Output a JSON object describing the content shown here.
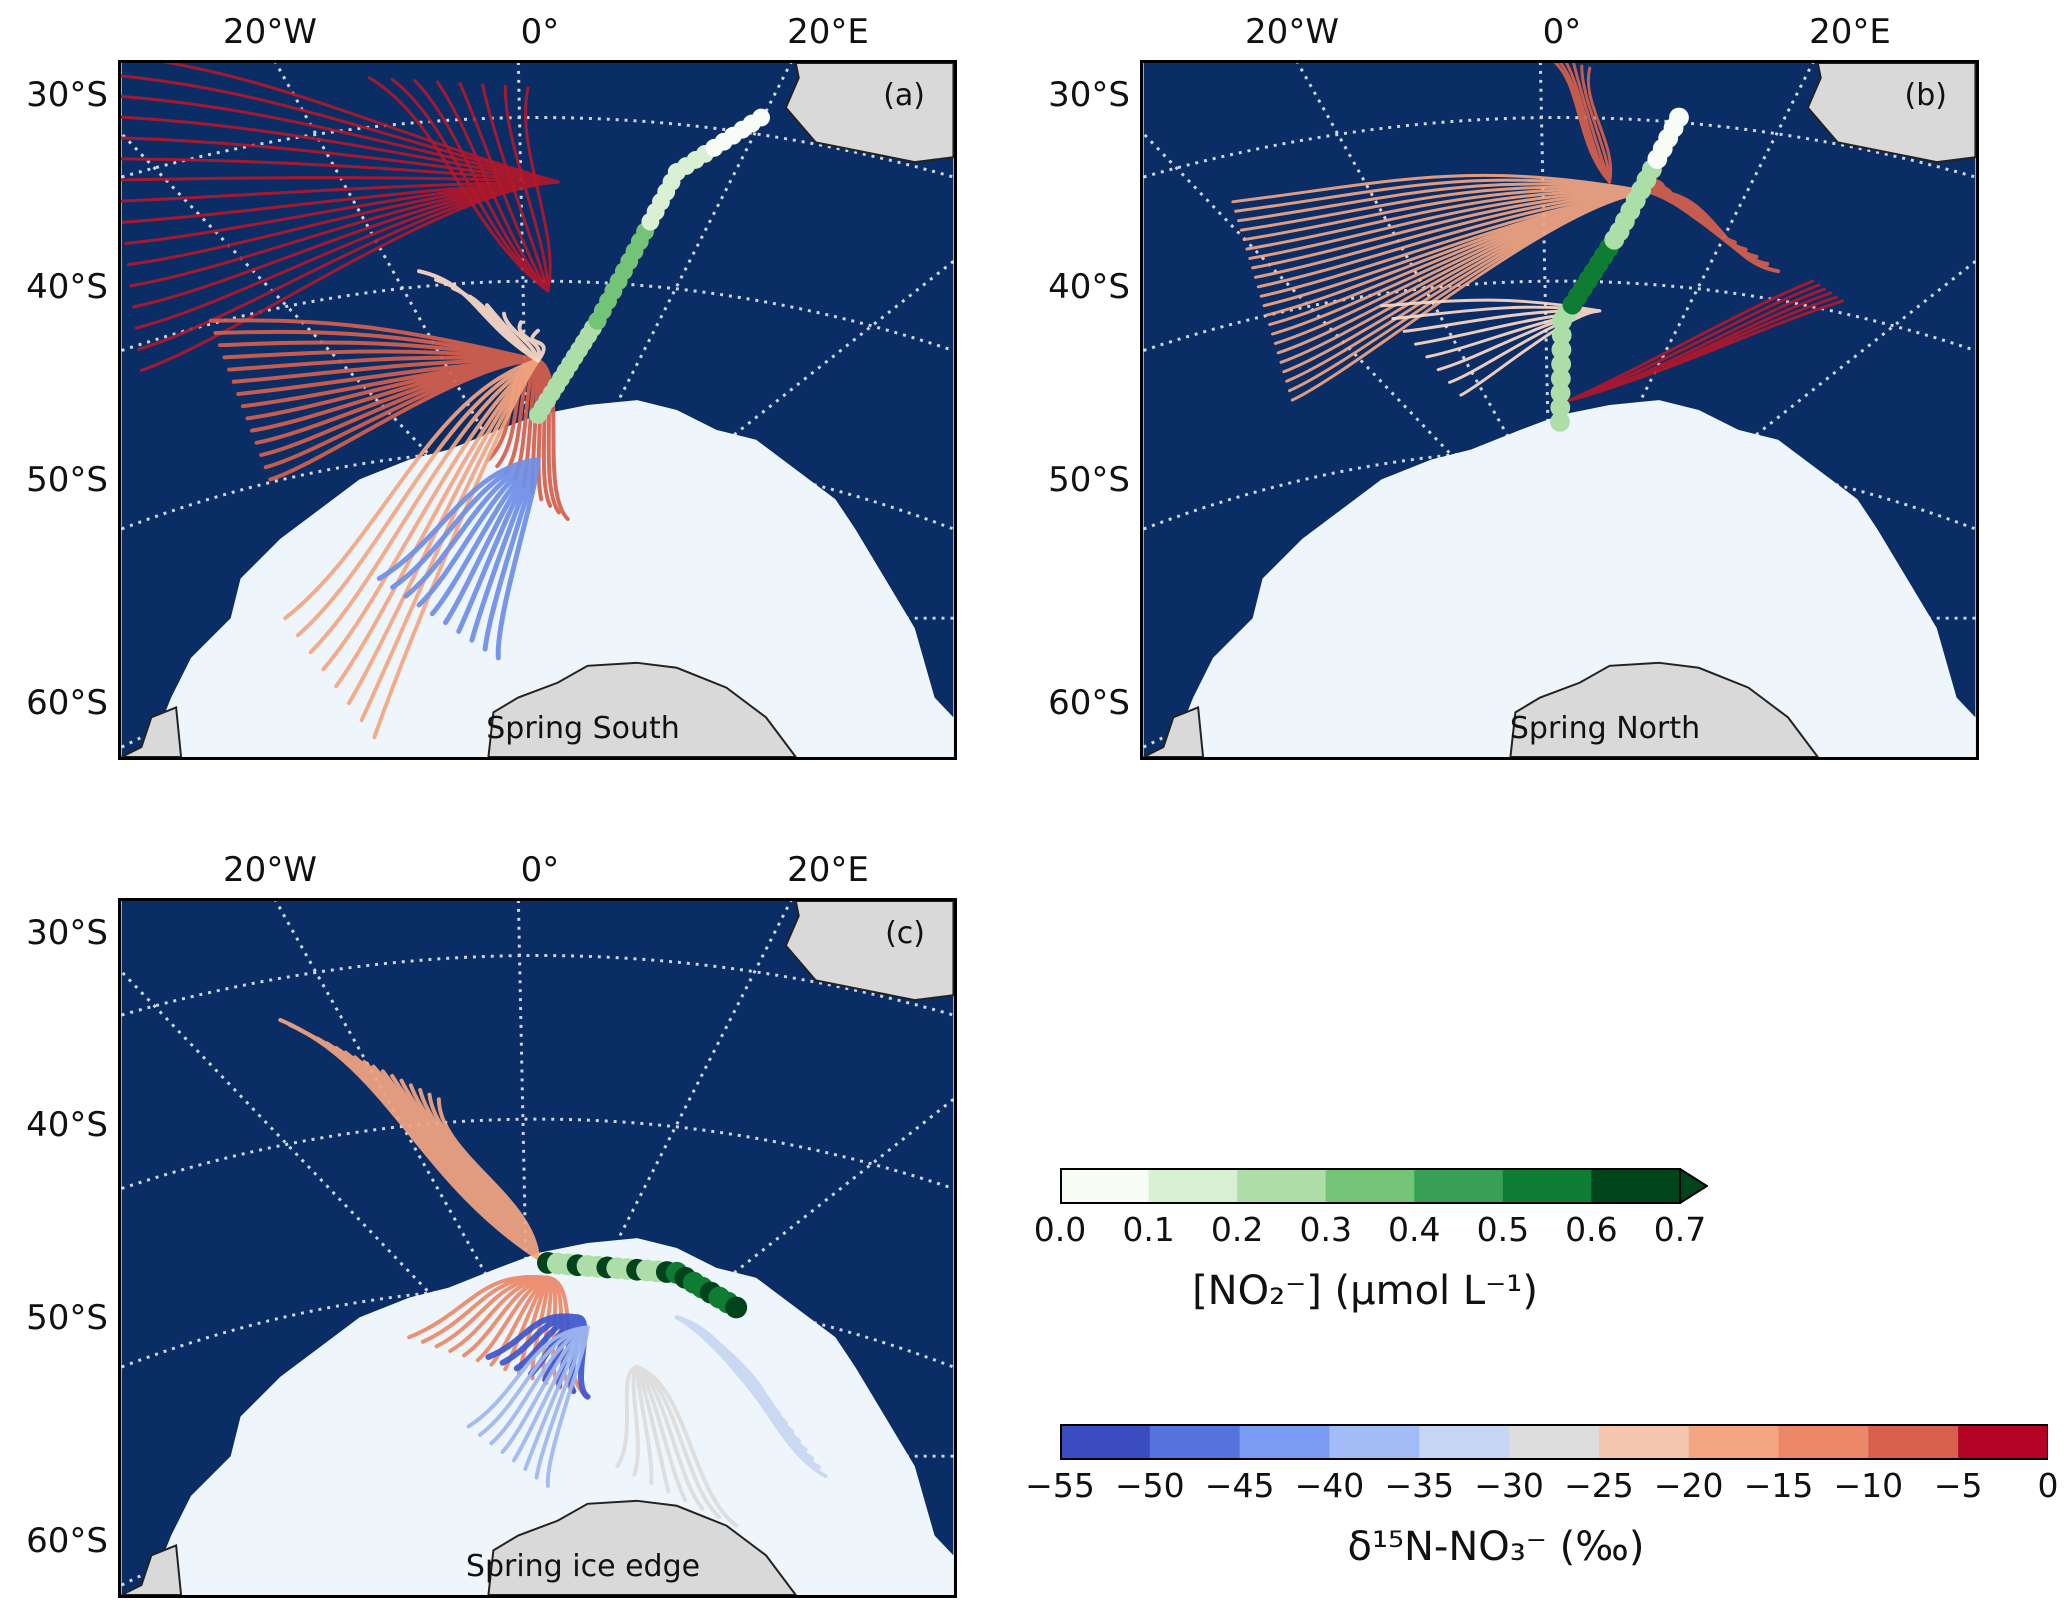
{
  "figure": {
    "longitude_labels": [
      "20°W",
      "0°",
      "20°E"
    ],
    "latitude_labels": [
      "30°S",
      "40°S",
      "50°S",
      "60°S"
    ],
    "colors": {
      "ocean": "#0b2d66",
      "land": "#d9d9d9",
      "sea_ice": "#eef5fb",
      "graticule": "#cfd6de"
    },
    "panels": [
      {
        "letter": "(a)",
        "label": "Spring South",
        "trajectory_class_colors": [
          "#b2182b",
          "#d6604d",
          "#f4a582",
          "#fddbc7",
          "#6f8fe6"
        ]
      },
      {
        "letter": "(b)",
        "label": "Spring North",
        "trajectory_class_colors": [
          "#b2182b",
          "#d6604d",
          "#f4a582",
          "#fddbc7"
        ]
      },
      {
        "letter": "(c)",
        "label": "Spring ice edge",
        "trajectory_class_colors": [
          "#f4a582",
          "#ec8868",
          "#3f56cf",
          "#9fb8f0",
          "#c7d6f2",
          "#dddddd"
        ]
      }
    ]
  },
  "colorbars": {
    "nitrite": {
      "title": "[NO₂⁻] (µmol L⁻¹)",
      "ticks": [
        "0.0",
        "0.1",
        "0.2",
        "0.3",
        "0.4",
        "0.5",
        "0.6",
        "0.7"
      ],
      "bounds": [
        0.0,
        0.1,
        0.2,
        0.3,
        0.4,
        0.5,
        0.6,
        0.7
      ],
      "extend": "max",
      "colors": [
        "#f7fcf5",
        "#d9f0d3",
        "#aedea7",
        "#73c476",
        "#37a055",
        "#0f7c33",
        "#00441b"
      ]
    },
    "d15n": {
      "title": "δ¹⁵N-NO₃⁻ (‰)",
      "ticks": [
        "−55",
        "−50",
        "−45",
        "−40",
        "−35",
        "−30",
        "−25",
        "−20",
        "−15",
        "−10",
        "−5",
        "0"
      ],
      "bounds": [
        -55,
        -50,
        -45,
        -40,
        -35,
        -30,
        -25,
        -20,
        -15,
        -10,
        -5,
        0
      ],
      "colors": [
        "#3b4cc0",
        "#5573db",
        "#7b9af1",
        "#a3bcf7",
        "#c6d6f2",
        "#dddddd",
        "#f4c6ad",
        "#f4a582",
        "#ec8868",
        "#d6604d",
        "#b40426"
      ]
    }
  }
}
